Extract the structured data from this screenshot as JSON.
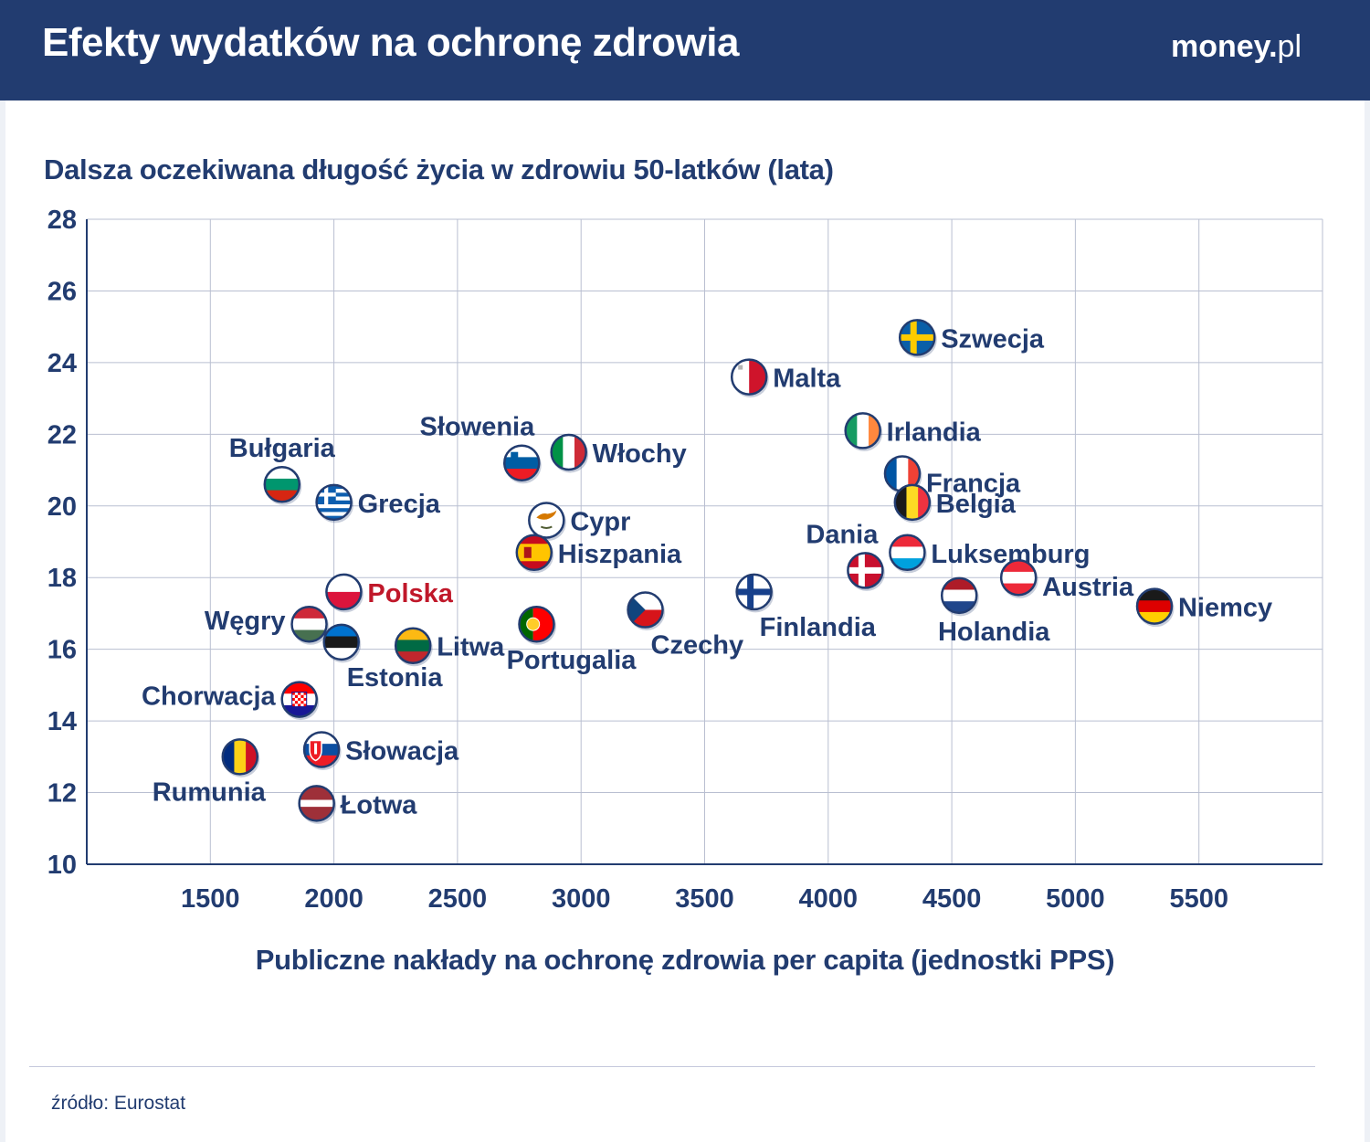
{
  "header": {
    "title": "Efekty wydatków na ochronę zdrowia",
    "logo_main": "money",
    "logo_dot": ".",
    "logo_tld": "pl"
  },
  "source": "źródło: Eurostat",
  "colors": {
    "header_bg": "#223c70",
    "text": "#223c70",
    "highlight": "#c0182a",
    "grid": "#b9bfd1"
  },
  "chart_data": {
    "type": "scatter",
    "title": "",
    "ylabel": "Dalsza oczekiwana długość życia w zdrowiu 50-latków (lata)",
    "xlabel": "Publiczne nakłady na ochronę zdrowia per capita (jednostki PPS)",
    "xlim": [
      1000,
      6000
    ],
    "ylim": [
      10,
      28
    ],
    "xticks": [
      1500,
      2000,
      2500,
      3000,
      3500,
      4000,
      4500,
      5000,
      5500
    ],
    "yticks": [
      10,
      12,
      14,
      16,
      18,
      20,
      22,
      24,
      26,
      28
    ],
    "grid": true,
    "points": [
      {
        "name": "Szwecja",
        "x": 4360,
        "y": 24.7,
        "flag": "se",
        "label_pos": "right"
      },
      {
        "name": "Malta",
        "x": 3680,
        "y": 23.6,
        "flag": "mt",
        "label_pos": "right"
      },
      {
        "name": "Irlandia",
        "x": 4140,
        "y": 22.1,
        "flag": "ie",
        "label_pos": "right"
      },
      {
        "name": "Francja",
        "x": 4300,
        "y": 20.9,
        "flag": "fr",
        "label_pos": "right-low"
      },
      {
        "name": "Belgia",
        "x": 4340,
        "y": 20.1,
        "flag": "be",
        "label_pos": "right"
      },
      {
        "name": "Luksemburg",
        "x": 4320,
        "y": 18.7,
        "flag": "lu",
        "label_pos": "right"
      },
      {
        "name": "Dania",
        "x": 4150,
        "y": 18.2,
        "flag": "dk",
        "label_pos": "above-left"
      },
      {
        "name": "Austria",
        "x": 4770,
        "y": 18.0,
        "flag": "at",
        "label_pos": "right-low"
      },
      {
        "name": "Holandia",
        "x": 4530,
        "y": 17.5,
        "flag": "nl",
        "label_pos": "below"
      },
      {
        "name": "Niemcy",
        "x": 5320,
        "y": 17.2,
        "flag": "de",
        "label_pos": "right"
      },
      {
        "name": "Finlandia",
        "x": 3700,
        "y": 17.6,
        "flag": "fi",
        "label_pos": "below-right"
      },
      {
        "name": "Czechy",
        "x": 3260,
        "y": 17.1,
        "flag": "cz",
        "label_pos": "below-right"
      },
      {
        "name": "Włochy",
        "x": 2950,
        "y": 21.5,
        "flag": "it",
        "label_pos": "right"
      },
      {
        "name": "Słowenia",
        "x": 2760,
        "y": 21.2,
        "flag": "si",
        "label_pos": "above-left"
      },
      {
        "name": "Cypr",
        "x": 2860,
        "y": 19.6,
        "flag": "cy",
        "label_pos": "right"
      },
      {
        "name": "Hiszpania",
        "x": 2810,
        "y": 18.7,
        "flag": "es",
        "label_pos": "right"
      },
      {
        "name": "Portugalia",
        "x": 2820,
        "y": 16.7,
        "flag": "pt",
        "label_pos": "below"
      },
      {
        "name": "Litwa",
        "x": 2320,
        "y": 16.1,
        "flag": "lt",
        "label_pos": "right"
      },
      {
        "name": "Polska",
        "x": 2040,
        "y": 17.6,
        "flag": "pl",
        "label_pos": "right",
        "highlight": true
      },
      {
        "name": "Grecja",
        "x": 2000,
        "y": 20.1,
        "flag": "gr",
        "label_pos": "right"
      },
      {
        "name": "Bułgaria",
        "x": 1790,
        "y": 20.6,
        "flag": "bg",
        "label_pos": "above"
      },
      {
        "name": "Węgry",
        "x": 1900,
        "y": 16.7,
        "flag": "hu",
        "label_pos": "left"
      },
      {
        "name": "Estonia",
        "x": 2030,
        "y": 16.2,
        "flag": "ee",
        "label_pos": "below-right"
      },
      {
        "name": "Chorwacja",
        "x": 1860,
        "y": 14.6,
        "flag": "hr",
        "label_pos": "left"
      },
      {
        "name": "Słowacja",
        "x": 1950,
        "y": 13.2,
        "flag": "sk",
        "label_pos": "right"
      },
      {
        "name": "Rumunia",
        "x": 1620,
        "y": 13.0,
        "flag": "ro",
        "label_pos": "below-left"
      },
      {
        "name": "Łotwa",
        "x": 1930,
        "y": 11.7,
        "flag": "lv",
        "label_pos": "right"
      }
    ]
  }
}
